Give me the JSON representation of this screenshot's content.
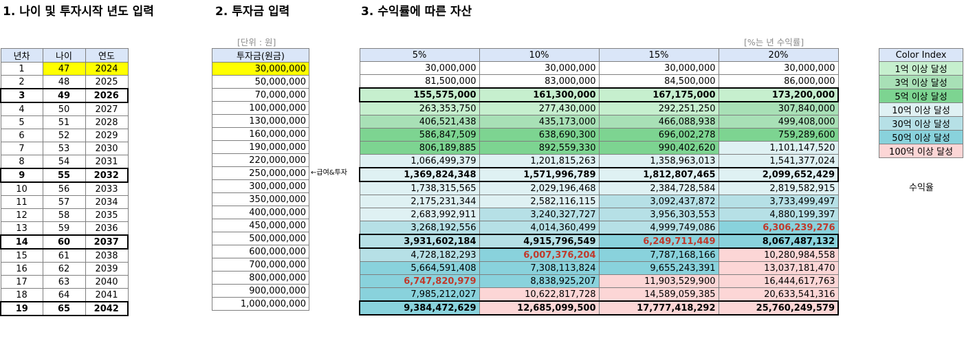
{
  "headings": {
    "section1": "1. 나이 및 투자시작 년도 입력",
    "section2": "2. 투자금 입력",
    "section3": "3. 수익률에 따른 자산"
  },
  "notes": {
    "unit": "[단위 : 원]",
    "rate_note": "[%는 년 수익률]",
    "arrow": "←급여&투자",
    "rate_label": "수익율"
  },
  "table1": {
    "headers": [
      "년차",
      "나이",
      "연도"
    ],
    "rows": [
      [
        "1",
        "47",
        "2024"
      ],
      [
        "2",
        "48",
        "2025"
      ],
      [
        "3",
        "49",
        "2026"
      ],
      [
        "4",
        "50",
        "2027"
      ],
      [
        "5",
        "51",
        "2028"
      ],
      [
        "6",
        "52",
        "2029"
      ],
      [
        "7",
        "53",
        "2030"
      ],
      [
        "8",
        "54",
        "2031"
      ],
      [
        "9",
        "55",
        "2032"
      ],
      [
        "10",
        "56",
        "2033"
      ],
      [
        "11",
        "57",
        "2034"
      ],
      [
        "12",
        "58",
        "2035"
      ],
      [
        "13",
        "59",
        "2036"
      ],
      [
        "14",
        "60",
        "2037"
      ],
      [
        "15",
        "61",
        "2038"
      ],
      [
        "16",
        "62",
        "2039"
      ],
      [
        "17",
        "63",
        "2040"
      ],
      [
        "18",
        "64",
        "2041"
      ],
      [
        "19",
        "65",
        "2042"
      ]
    ]
  },
  "table2": {
    "header": "투자금(원금)",
    "rows": [
      "30,000,000",
      "50,000,000",
      "70,000,000",
      "100,000,000",
      "130,000,000",
      "160,000,000",
      "190,000,000",
      "220,000,000",
      "250,000,000",
      "300,000,000",
      "350,000,000",
      "400,000,000",
      "450,000,000",
      "500,000,000",
      "600,000,000",
      "700,000,000",
      "800,000,000",
      "900,000,000",
      "1,000,000,000"
    ]
  },
  "table3": {
    "headers": [
      "5%",
      "10%",
      "15%",
      "20%"
    ],
    "rows": [
      [
        "30,000,000",
        "30,000,000",
        "30,000,000",
        "30,000,000"
      ],
      [
        "81,500,000",
        "83,000,000",
        "84,500,000",
        "86,000,000"
      ],
      [
        "155,575,000",
        "161,300,000",
        "167,175,000",
        "173,200,000"
      ],
      [
        "263,353,750",
        "277,430,000",
        "292,251,250",
        "307,840,000"
      ],
      [
        "406,521,438",
        "435,173,000",
        "466,088,938",
        "499,408,000"
      ],
      [
        "586,847,509",
        "638,690,300",
        "696,002,278",
        "759,289,600"
      ],
      [
        "806,189,885",
        "892,559,330",
        "990,402,620",
        "1,101,147,520"
      ],
      [
        "1,066,499,379",
        "1,201,815,263",
        "1,358,963,013",
        "1,541,377,024"
      ],
      [
        "1,369,824,348",
        "1,571,996,789",
        "1,812,807,465",
        "2,099,652,429"
      ],
      [
        "1,738,315,565",
        "2,029,196,468",
        "2,384,728,584",
        "2,819,582,915"
      ],
      [
        "2,175,231,344",
        "2,582,116,115",
        "3,092,437,872",
        "3,733,499,497"
      ],
      [
        "2,683,992,911",
        "3,240,327,727",
        "3,956,303,553",
        "4,880,199,397"
      ],
      [
        "3,268,192,556",
        "4,014,360,499",
        "4,999,749,086",
        "6,306,239,276"
      ],
      [
        "3,931,602,184",
        "4,915,796,549",
        "6,249,711,449",
        "8,067,487,132"
      ],
      [
        "4,728,182,293",
        "6,007,376,204",
        "7,787,168,166",
        "10,280,984,558"
      ],
      [
        "5,664,591,408",
        "7,308,113,824",
        "9,655,243,391",
        "13,037,181,470"
      ],
      [
        "6,747,820,979",
        "8,838,925,207",
        "11,903,529,900",
        "16,444,617,763"
      ],
      [
        "7,985,212,027",
        "10,622,817,728",
        "14,589,059,385",
        "20,633,541,316"
      ],
      [
        "9,384,472,629",
        "12,685,099,500",
        "17,777,418,292",
        "25,760,249,579"
      ]
    ]
  },
  "legend": {
    "title": "Color Index",
    "items": [
      "1억 이상 달성",
      "3억 이상 달성",
      "5억 이상 달성",
      "10억 이상 달성",
      "30억 이상 달성",
      "50억 이상 달성",
      "100억 이상 달성"
    ]
  },
  "colors": {
    "input_yellow": "#ffff00",
    "header_blue": "#dae6f8",
    "level_1": "#c6efce",
    "level_3": "#a8e0b6",
    "level_5": "#7dd491",
    "level_10": "#dff1f3",
    "level_30": "#b6e0e6",
    "level_50": "#89d2dc",
    "level_100": "#fcd6d6",
    "highlight_red": "#c0392b"
  }
}
